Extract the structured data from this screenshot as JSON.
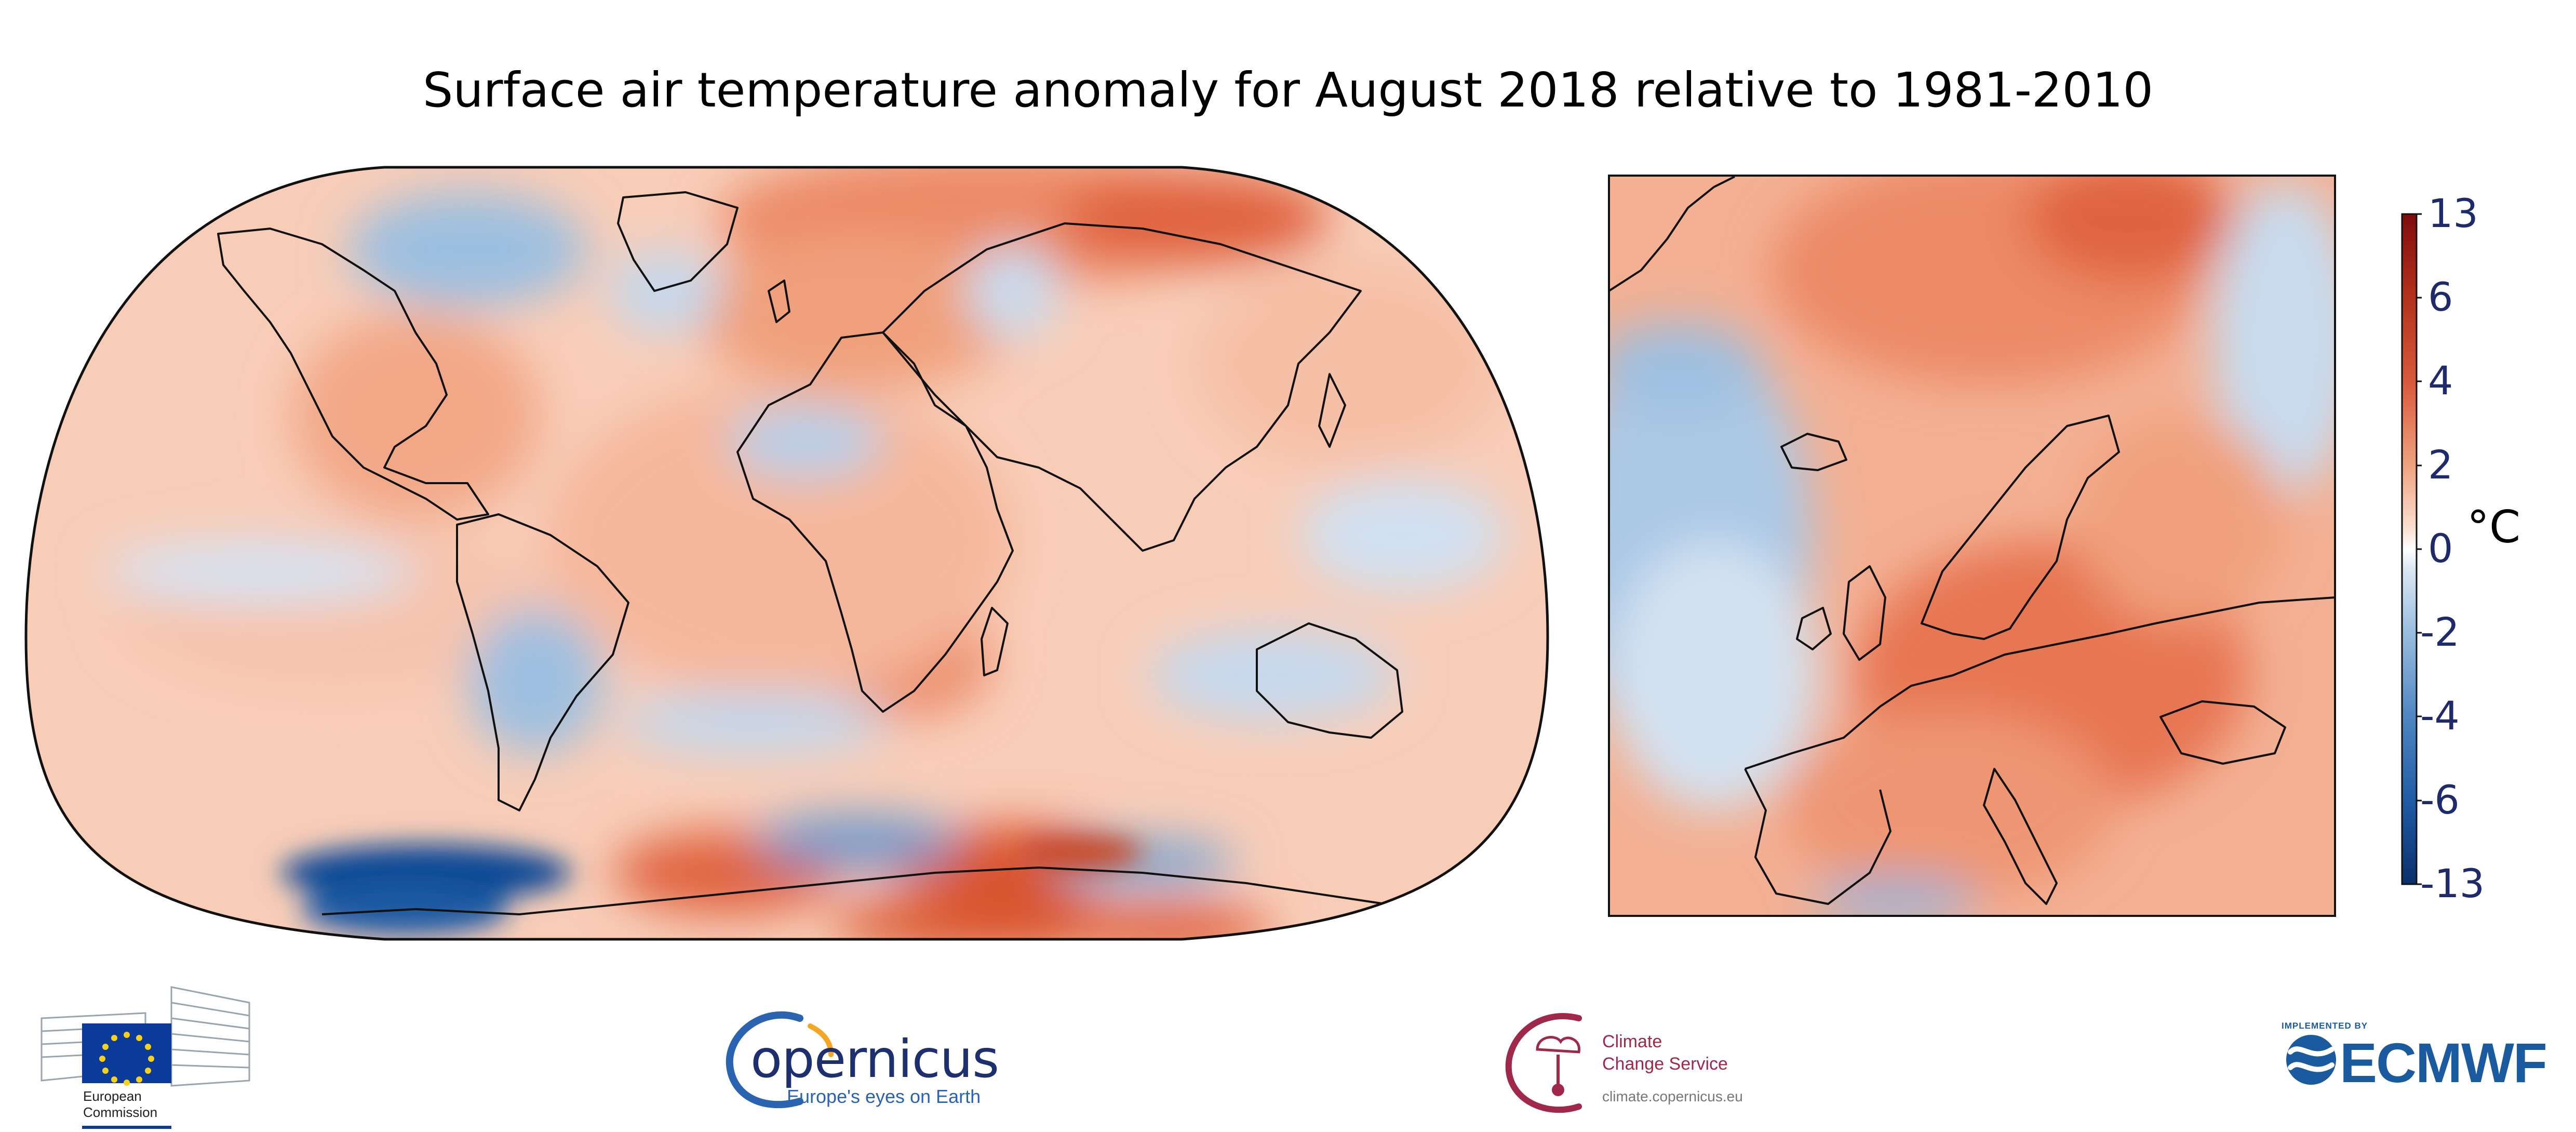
{
  "title": "Surface air temperature anomaly for August 2018 relative to 1981-2010",
  "colorbar": {
    "unit": "°C",
    "ticks": [
      "13",
      "6",
      "4",
      "2",
      "0",
      "-2",
      "-4",
      "-6",
      "-13"
    ],
    "colors": [
      "#7f0d0d",
      "#b2301b",
      "#d8593b",
      "#f0a582",
      "#fbe0d2",
      "#ffffff",
      "#dbe6f3",
      "#9cbfe0",
      "#4f86c2",
      "#1e5aa3",
      "#0b2f6b"
    ]
  },
  "maps": {
    "global": "World map, Robinson projection",
    "europe": "Europe regional map"
  },
  "logos": {
    "european_commission": {
      "line1": "European",
      "line2": "Commission"
    },
    "copernicus": {
      "wordmark": "opernicus",
      "tagline": "Europe's eyes on Earth"
    },
    "climate_change_service": {
      "line1": "Climate",
      "line2": "Change Service",
      "url": "climate.copernicus.eu"
    },
    "ecmwf": {
      "implemented_by": "IMPLEMENTED BY",
      "wordmark": "ECMWF"
    }
  },
  "colors": {
    "warm": "#e8704f",
    "cool": "#4f86c2",
    "navy": "#1d2f6f",
    "ccs": "#a0284a",
    "ecmwf": "#1a5a9f"
  }
}
